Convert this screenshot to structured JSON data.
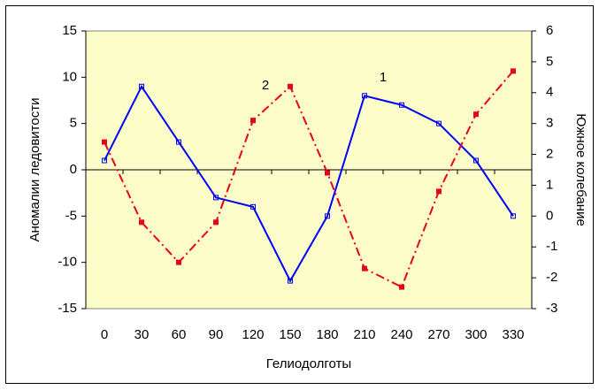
{
  "chart_data": {
    "type": "line",
    "y_label": "Аномалии ледовитости",
    "y2_label": "Южное колебание",
    "x_label": "Гелиодолготы",
    "categories": [
      "0",
      "30",
      "60",
      "90",
      "120",
      "150",
      "180",
      "210",
      "240",
      "270",
      "300",
      "330"
    ],
    "series": [
      {
        "name": "1",
        "color": "#0000ff",
        "values": [
          1,
          9,
          3,
          -3,
          -4,
          -12,
          -5,
          8,
          7,
          5,
          1,
          -5
        ]
      },
      {
        "name": "2",
        "color": "#e8001c",
        "axis": "y2",
        "values": [
          2.4,
          -0.2,
          -1.5,
          -0.2,
          3.1,
          4.2,
          1.4,
          -1.7,
          -2.3,
          0.8,
          3.3,
          4.7
        ]
      }
    ],
    "ylim": [
      -15,
      15
    ],
    "yticks": [
      -15,
      -10,
      -5,
      0,
      5,
      10,
      15
    ],
    "y2lim": [
      -3,
      6
    ],
    "y2ticks": [
      -3,
      -2,
      -1,
      0,
      1,
      2,
      3,
      4,
      5,
      6
    ]
  }
}
